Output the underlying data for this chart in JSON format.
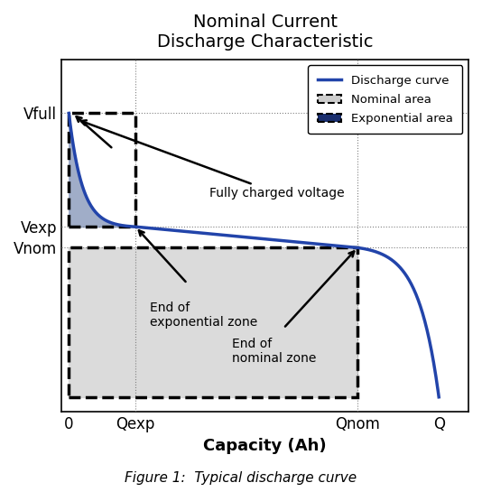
{
  "title": "Nominal Current\nDischarge Characteristic",
  "xlabel": "Capacity (Ah)",
  "ylabel": "",
  "caption": "Figure 1:  Typical discharge curve",
  "x_ticks_labels": [
    "0",
    "Qexp",
    "Qnom",
    "Q"
  ],
  "x_ticks_pos": [
    0.0,
    0.18,
    0.78,
    1.0
  ],
  "y_ticks_labels": [
    "Vfull",
    "Vexp",
    "Vnom"
  ],
  "y_ticks_pos": [
    1.0,
    0.62,
    0.55
  ],
  "discharge_color": "#2244aa",
  "exp_fill_color": "#8899bb",
  "nom_fill_color": "#cccccc",
  "legend_nominal_color": "#cccccc",
  "legend_exp_color": "#1a2e6e",
  "background_color": "#ffffff",
  "title_fontsize": 14,
  "label_fontsize": 13,
  "tick_fontsize": 12,
  "caption_fontsize": 11
}
